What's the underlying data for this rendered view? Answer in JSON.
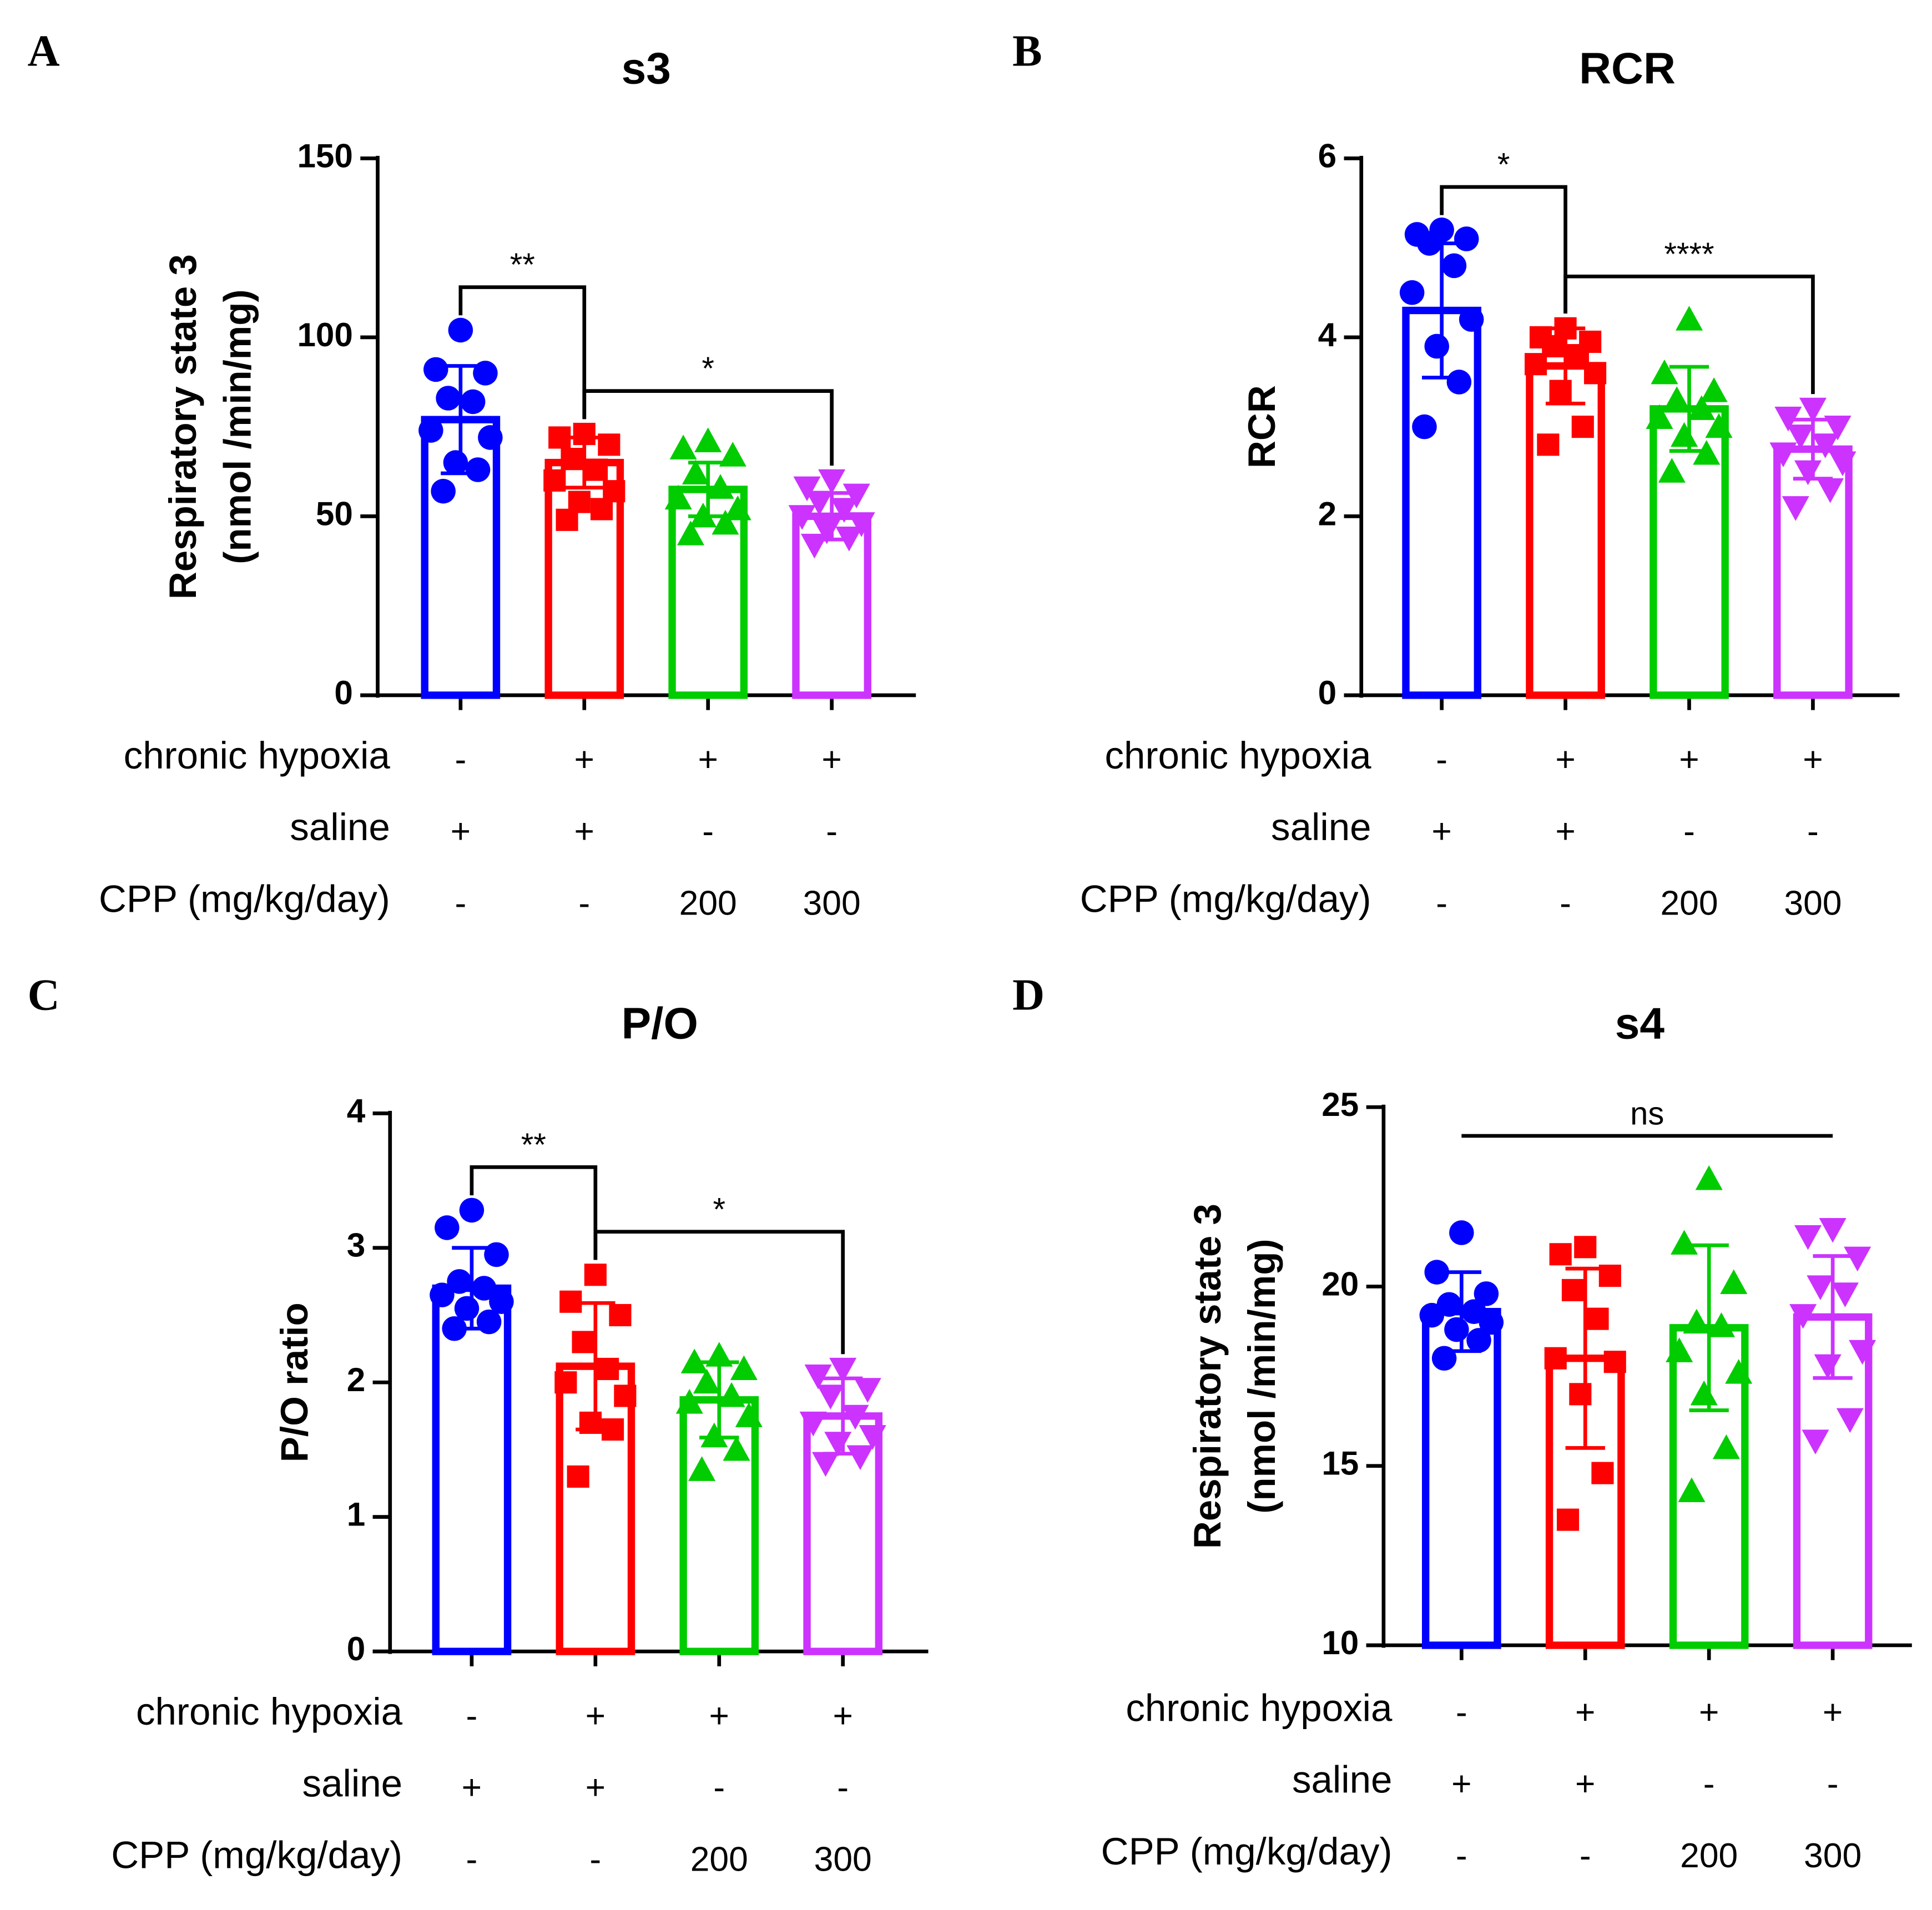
{
  "chart_data": [
    {
      "type": "bar",
      "panel": "A",
      "title": "s3",
      "ylabel": [
        "Respiratory state 3",
        "(nmol /min/mg)"
      ],
      "ylim": [
        0,
        150
      ],
      "yticks": [
        0,
        50,
        100,
        150
      ],
      "groups": [
        {
          "color": "#0000ff",
          "marker": "circle",
          "mean": 77,
          "sd": 15,
          "points": [
            102,
            91,
            90,
            83,
            82,
            74,
            72,
            65,
            63,
            57
          ]
        },
        {
          "color": "#ff0000",
          "marker": "square",
          "mean": 65,
          "sd": 7,
          "points": [
            73,
            72,
            70,
            66,
            63,
            60,
            57,
            54,
            52,
            49
          ]
        },
        {
          "color": "#00cc00",
          "marker": "triangle-up",
          "mean": 57.5,
          "sd": 7.5,
          "points": [
            71,
            69,
            67,
            62,
            58,
            55,
            52,
            50,
            48,
            45
          ]
        },
        {
          "color": "#cc33ff",
          "marker": "triangle-down",
          "mean": 50,
          "sd": 6.5,
          "points": [
            60,
            58,
            56,
            54,
            52,
            50,
            48,
            46,
            44,
            42
          ]
        }
      ],
      "conditions": [
        {
          "label": "chronic hypoxia",
          "values": [
            "-",
            "+",
            "+",
            "+"
          ]
        },
        {
          "label": "saline",
          "values": [
            "+",
            "+",
            "-",
            "-"
          ]
        },
        {
          "label": "CPP (mg/kg/day)",
          "values": [
            "-",
            "-",
            "200",
            "300"
          ]
        }
      ],
      "annotations": [
        {
          "text": "**",
          "from": 0,
          "to": 1
        },
        {
          "text": "*",
          "from": 1,
          "to": 3
        }
      ]
    },
    {
      "type": "bar",
      "panel": "B",
      "title": "RCR",
      "ylabel": [
        "RCR"
      ],
      "ylim": [
        0,
        6
      ],
      "yticks": [
        0,
        2,
        4,
        6
      ],
      "groups": [
        {
          "color": "#0000ff",
          "marker": "circle",
          "mean": 4.3,
          "sd": 0.75,
          "points": [
            5.2,
            5.15,
            5.1,
            5.05,
            4.8,
            4.5,
            4.2,
            3.9,
            3.5,
            3.0
          ]
        },
        {
          "color": "#ff0000",
          "marker": "square",
          "mean": 3.68,
          "sd": 0.42,
          "points": [
            4.1,
            4.0,
            3.95,
            3.9,
            3.8,
            3.7,
            3.6,
            3.4,
            3.0,
            2.8
          ]
        },
        {
          "color": "#00cc00",
          "marker": "triangle-up",
          "mean": 3.2,
          "sd": 0.47,
          "points": [
            4.2,
            3.6,
            3.4,
            3.3,
            3.2,
            3.1,
            3.0,
            2.9,
            2.7,
            2.5
          ]
        },
        {
          "color": "#cc33ff",
          "marker": "triangle-down",
          "mean": 2.75,
          "sd": 0.33,
          "points": [
            3.2,
            3.1,
            3.0,
            2.9,
            2.8,
            2.7,
            2.6,
            2.5,
            2.3,
            2.1
          ]
        }
      ],
      "conditions": [
        {
          "label": "chronic hypoxia",
          "values": [
            "-",
            "+",
            "+",
            "+"
          ]
        },
        {
          "label": "saline",
          "values": [
            "+",
            "+",
            "-",
            "-"
          ]
        },
        {
          "label": "CPP (mg/kg/day)",
          "values": [
            "-",
            "-",
            "200",
            "300"
          ]
        }
      ],
      "annotations": [
        {
          "text": "*",
          "from": 0,
          "to": 1
        },
        {
          "text": "****",
          "from": 1,
          "to": 3
        }
      ]
    },
    {
      "type": "bar",
      "panel": "C",
      "title": "P/O",
      "ylabel": [
        "P/O ratio"
      ],
      "ylim": [
        0,
        4
      ],
      "yticks": [
        0,
        1,
        2,
        3,
        4
      ],
      "groups": [
        {
          "color": "#0000ff",
          "marker": "circle",
          "mean": 2.7,
          "sd": 0.3,
          "points": [
            3.28,
            3.15,
            2.95,
            2.75,
            2.7,
            2.65,
            2.6,
            2.55,
            2.45,
            2.4
          ]
        },
        {
          "color": "#ff0000",
          "marker": "square",
          "mean": 2.12,
          "sd": 0.47,
          "points": [
            2.8,
            2.6,
            2.5,
            2.3,
            2.1,
            2.0,
            1.9,
            1.7,
            1.65,
            1.3
          ]
        },
        {
          "color": "#00cc00",
          "marker": "triangle-up",
          "mean": 1.87,
          "sd": 0.28,
          "points": [
            2.2,
            2.15,
            2.1,
            2.0,
            1.9,
            1.85,
            1.75,
            1.6,
            1.5,
            1.35
          ]
        },
        {
          "color": "#cc33ff",
          "marker": "triangle-down",
          "mean": 1.75,
          "sd": 0.28,
          "points": [
            2.1,
            2.05,
            1.95,
            1.9,
            1.75,
            1.7,
            1.6,
            1.55,
            1.45,
            1.4
          ]
        }
      ],
      "conditions": [
        {
          "label": "chronic hypoxia",
          "values": [
            "-",
            "+",
            "+",
            "+"
          ]
        },
        {
          "label": "saline",
          "values": [
            "+",
            "+",
            "-",
            "-"
          ]
        },
        {
          "label": "CPP (mg/kg/day)",
          "values": [
            "-",
            "-",
            "200",
            "300"
          ]
        }
      ],
      "annotations": [
        {
          "text": "**",
          "from": 0,
          "to": 1
        },
        {
          "text": "*",
          "from": 1,
          "to": 3
        }
      ]
    },
    {
      "type": "bar",
      "panel": "D",
      "title": "s4",
      "ylabel": [
        "Respiratory state 3",
        "(nmol /min/mg)"
      ],
      "ylim": [
        10,
        25
      ],
      "yticks": [
        10,
        15,
        20,
        25
      ],
      "groups": [
        {
          "color": "#0000ff",
          "marker": "circle",
          "mean": 19.3,
          "sd": 1.1,
          "points": [
            21.5,
            20.4,
            19.8,
            19.5,
            19.3,
            19.2,
            19.0,
            18.8,
            18.5,
            18.0
          ]
        },
        {
          "color": "#ff0000",
          "marker": "square",
          "mean": 18.0,
          "sd": 2.5,
          "points": [
            21.1,
            20.9,
            20.3,
            19.9,
            19.1,
            18.0,
            17.9,
            17.0,
            14.8,
            13.5
          ]
        },
        {
          "color": "#00cc00",
          "marker": "triangle-up",
          "mean": 18.85,
          "sd": 2.3,
          "points": [
            23.0,
            21.2,
            20.1,
            19.0,
            18.9,
            18.2,
            17.6,
            17.0,
            15.5,
            14.3
          ]
        },
        {
          "color": "#cc33ff",
          "marker": "triangle-down",
          "mean": 19.15,
          "sd": 1.7,
          "points": [
            21.6,
            21.4,
            20.8,
            20.0,
            19.8,
            19.2,
            18.2,
            17.8,
            16.3,
            15.7
          ]
        }
      ],
      "conditions": [
        {
          "label": "chronic hypoxia",
          "values": [
            "-",
            "+",
            "+",
            "+"
          ]
        },
        {
          "label": "saline",
          "values": [
            "+",
            "+",
            "-",
            "-"
          ]
        },
        {
          "label": "CPP (mg/kg/day)",
          "values": [
            "-",
            "-",
            "200",
            "300"
          ]
        }
      ],
      "annotations": [
        {
          "text": "ns",
          "from": 0,
          "to": 3,
          "bracket": "line"
        }
      ]
    }
  ]
}
